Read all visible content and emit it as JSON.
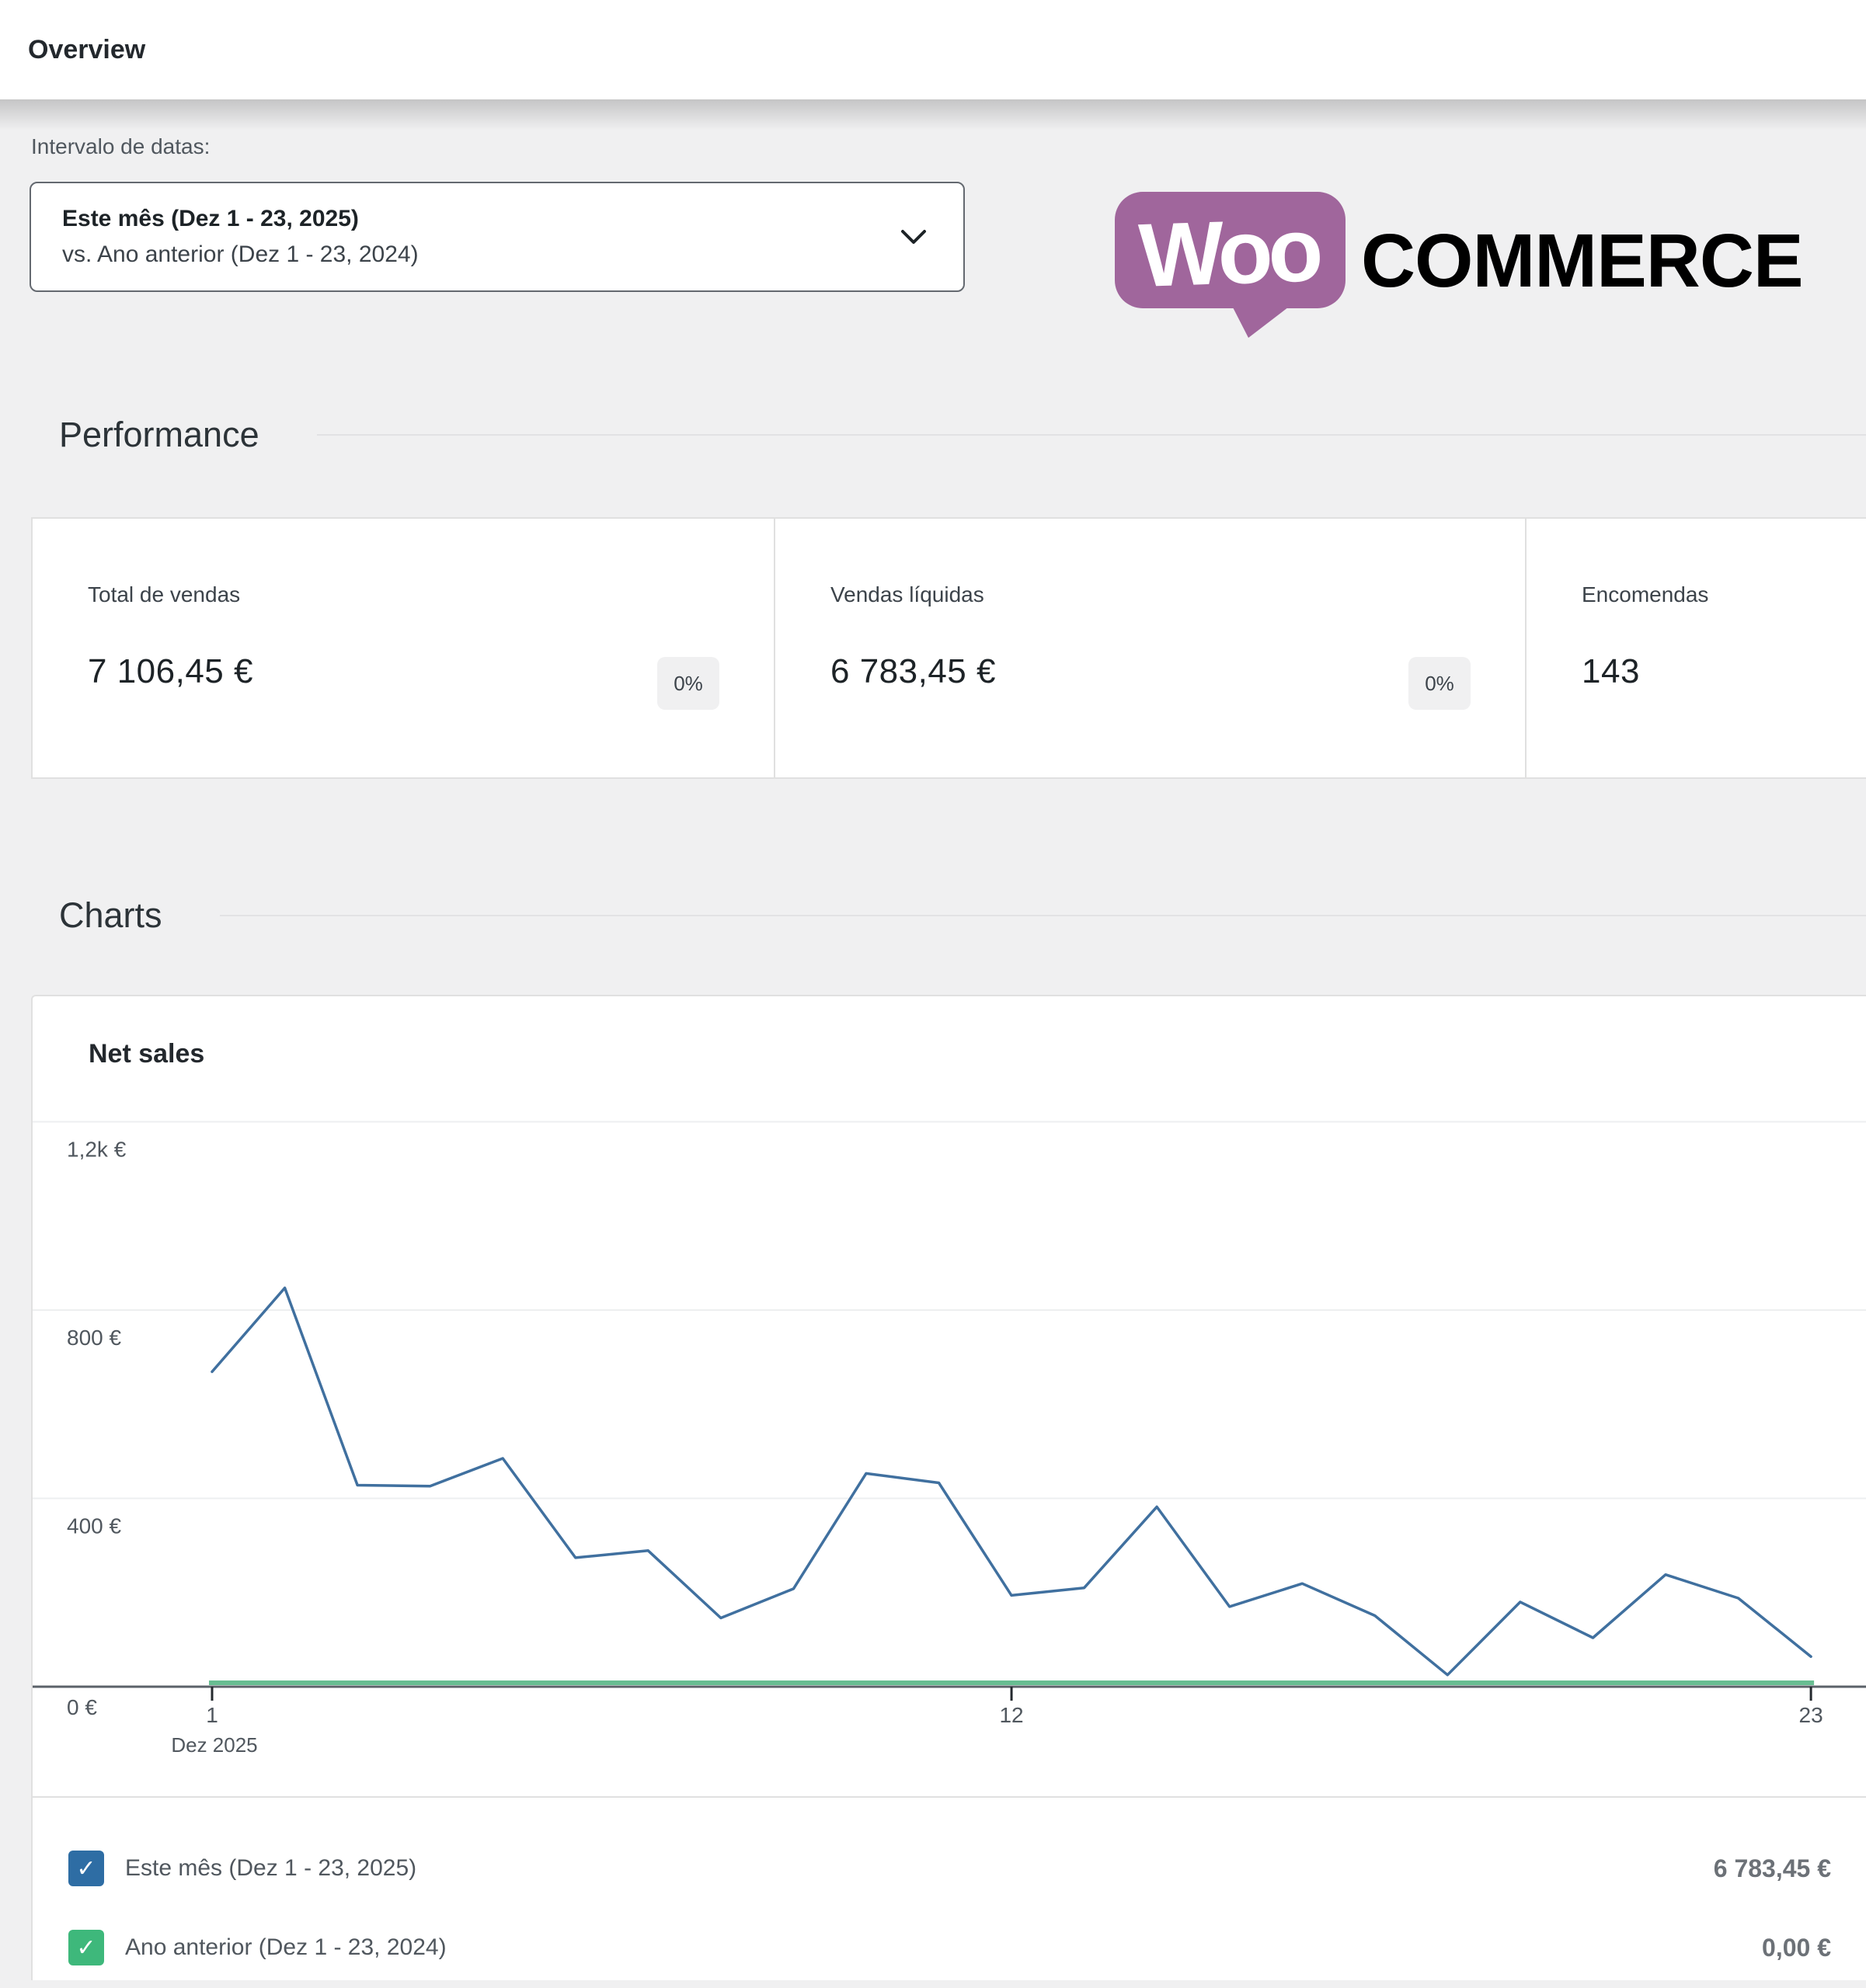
{
  "header": {
    "title": "Overview"
  },
  "filters": {
    "label": "Intervalo de datas:",
    "range_primary": "Este mês (Dez 1 - 23, 2025)",
    "range_secondary": "vs. Ano anterior (Dez 1 - 23, 2024)"
  },
  "logo": {
    "bubble_text": "Woo",
    "wordmark": "COMMERCE",
    "purple": "#a0669c"
  },
  "performance": {
    "heading": "Performance",
    "cards": [
      {
        "label": "Total de vendas",
        "value": "7 106,45 €",
        "badge": "0%"
      },
      {
        "label": "Vendas líquidas",
        "value": "6 783,45 €",
        "badge": "0%"
      },
      {
        "label": "Encomendas",
        "value": "143"
      }
    ]
  },
  "charts_section": {
    "heading": "Charts",
    "card_title": "Net sales"
  },
  "chart_data": {
    "type": "line",
    "title": "Net sales",
    "x": [
      1,
      2,
      3,
      4,
      5,
      6,
      7,
      8,
      9,
      10,
      11,
      12,
      13,
      14,
      15,
      16,
      17,
      18,
      19,
      20,
      21,
      22,
      23
    ],
    "series": [
      {
        "name": "Este mês (Dez 1 - 23, 2025)",
        "color": "#40709f",
        "values": [
          669,
          847,
          428,
          426,
          485,
          274,
          289,
          146,
          208,
          453,
          433,
          194,
          210,
          382,
          170,
          219,
          151,
          25,
          180,
          104,
          238,
          188,
          64
        ]
      },
      {
        "name": "Ano anterior (Dez 1 - 23, 2024)",
        "color": "#68bd92",
        "values": [
          0,
          0,
          0,
          0,
          0,
          0,
          0,
          0,
          0,
          0,
          0,
          0,
          0,
          0,
          0,
          0,
          0,
          0,
          0,
          0,
          0,
          0,
          0
        ]
      }
    ],
    "ylim": [
      0,
      1200
    ],
    "yticks": [
      {
        "value": 0,
        "label": "0 €"
      },
      {
        "value": 400,
        "label": "400 €"
      },
      {
        "value": 800,
        "label": "800 €"
      },
      {
        "value": 1200,
        "label": "1,2k €"
      }
    ],
    "xticks": [
      {
        "day": 1,
        "label": "1"
      },
      {
        "day": 12,
        "label": "12"
      },
      {
        "day": 23,
        "label": "23"
      }
    ],
    "x_axis_caption": "Dez 2025",
    "grid": true,
    "legend_position": "bottom"
  },
  "legend": {
    "rows": [
      {
        "label": "Este mês (Dez 1 - 23, 2025)",
        "value": "6 783,45 €",
        "color": "#2e6da4",
        "check": "✓"
      },
      {
        "label": "Ano anterior (Dez 1 - 23, 2024)",
        "value": "0,00 €",
        "color": "#3eb87b",
        "check": "✓"
      }
    ]
  }
}
